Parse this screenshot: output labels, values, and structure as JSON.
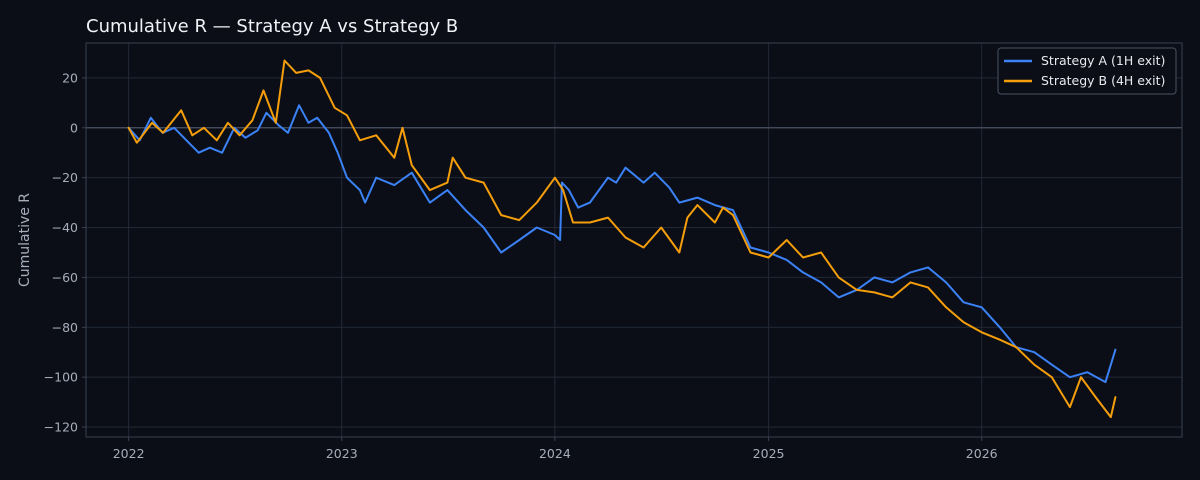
{
  "chart_data": {
    "type": "line",
    "title": "Cumulative R — Strategy A vs Strategy B",
    "xlabel": "",
    "ylabel": "Cumulative R",
    "xlim": [
      "2021-10-20",
      "2026-12-10"
    ],
    "ylim": [
      -124,
      34
    ],
    "x_ticks": [
      "2022",
      "2023",
      "2024",
      "2025",
      "2026"
    ],
    "y_ticks": [
      20,
      0,
      -20,
      -40,
      -60,
      -80,
      -100,
      -120
    ],
    "y_tick_labels": [
      "20",
      "0",
      "−20",
      "−40",
      "−60",
      "−80",
      "−100",
      "−120"
    ],
    "grid": true,
    "zero_line": true,
    "legend": "top-right",
    "colors": {
      "background": "#0b0e17",
      "grid": "#222836",
      "axis": "#3a4050",
      "zero_line": "#4a5262",
      "text": "#e8eaf0",
      "tick_text": "#a7adba",
      "series_a": "#3b82f6",
      "series_b": "#f59e0b"
    },
    "series": [
      {
        "name": "Strategy A (1H exit)",
        "color": "#3b82f6",
        "points": [
          [
            "2022-01-01",
            0
          ],
          [
            "2022-01-20",
            -5
          ],
          [
            "2022-02-08",
            4
          ],
          [
            "2022-02-28",
            -2
          ],
          [
            "2022-03-20",
            0
          ],
          [
            "2022-04-10",
            -5
          ],
          [
            "2022-05-01",
            -10
          ],
          [
            "2022-05-20",
            -8
          ],
          [
            "2022-06-10",
            -10
          ],
          [
            "2022-07-01",
            0
          ],
          [
            "2022-07-20",
            -4
          ],
          [
            "2022-08-10",
            -1
          ],
          [
            "2022-08-25",
            6
          ],
          [
            "2022-09-15",
            1
          ],
          [
            "2022-10-01",
            -2
          ],
          [
            "2022-10-20",
            9
          ],
          [
            "2022-11-05",
            2
          ],
          [
            "2022-11-20",
            4
          ],
          [
            "2022-12-10",
            -2
          ],
          [
            "2022-12-25",
            -10
          ],
          [
            "2023-01-10",
            -20
          ],
          [
            "2023-02-01",
            -25
          ],
          [
            "2023-02-10",
            -30
          ],
          [
            "2023-03-01",
            -20
          ],
          [
            "2023-04-01",
            -23
          ],
          [
            "2023-05-01",
            -18
          ],
          [
            "2023-06-01",
            -30
          ],
          [
            "2023-07-01",
            -25
          ],
          [
            "2023-08-01",
            -33
          ],
          [
            "2023-09-01",
            -40
          ],
          [
            "2023-10-01",
            -50
          ],
          [
            "2023-11-01",
            -45
          ],
          [
            "2023-12-01",
            -40
          ],
          [
            "2024-01-01",
            -43
          ],
          [
            "2024-01-10",
            -45
          ],
          [
            "2024-01-13",
            -22
          ],
          [
            "2024-01-25",
            -25
          ],
          [
            "2024-02-10",
            -32
          ],
          [
            "2024-03-01",
            -30
          ],
          [
            "2024-04-01",
            -20
          ],
          [
            "2024-04-15",
            -22
          ],
          [
            "2024-05-01",
            -16
          ],
          [
            "2024-06-01",
            -22
          ],
          [
            "2024-06-20",
            -18
          ],
          [
            "2024-07-15",
            -24
          ],
          [
            "2024-08-01",
            -30
          ],
          [
            "2024-09-01",
            -28
          ],
          [
            "2024-10-01",
            -31
          ],
          [
            "2024-11-01",
            -33
          ],
          [
            "2024-12-01",
            -48
          ],
          [
            "2025-01-01",
            -50
          ],
          [
            "2025-02-01",
            -53
          ],
          [
            "2025-03-01",
            -58
          ],
          [
            "2025-04-01",
            -62
          ],
          [
            "2025-05-01",
            -68
          ],
          [
            "2025-06-01",
            -65
          ],
          [
            "2025-07-01",
            -60
          ],
          [
            "2025-08-01",
            -62
          ],
          [
            "2025-09-01",
            -58
          ],
          [
            "2025-10-01",
            -56
          ],
          [
            "2025-11-01",
            -62
          ],
          [
            "2025-12-01",
            -70
          ],
          [
            "2026-01-01",
            -72
          ],
          [
            "2026-02-01",
            -80
          ],
          [
            "2026-03-01",
            -88
          ],
          [
            "2026-04-01",
            -90
          ],
          [
            "2026-05-01",
            -95
          ],
          [
            "2026-06-01",
            -100
          ],
          [
            "2026-07-01",
            -98
          ],
          [
            "2026-08-01",
            -102
          ],
          [
            "2026-08-18",
            -89
          ]
        ]
      },
      {
        "name": "Strategy B (4H exit)",
        "color": "#f59e0b",
        "points": [
          [
            "2022-01-01",
            0
          ],
          [
            "2022-01-15",
            -6
          ],
          [
            "2022-01-25",
            -3
          ],
          [
            "2022-02-10",
            2
          ],
          [
            "2022-03-01",
            -2
          ],
          [
            "2022-04-01",
            7
          ],
          [
            "2022-04-20",
            -3
          ],
          [
            "2022-05-10",
            0
          ],
          [
            "2022-06-01",
            -5
          ],
          [
            "2022-06-20",
            2
          ],
          [
            "2022-07-10",
            -3
          ],
          [
            "2022-08-01",
            3
          ],
          [
            "2022-08-20",
            15
          ],
          [
            "2022-09-10",
            2
          ],
          [
            "2022-09-25",
            27
          ],
          [
            "2022-10-15",
            22
          ],
          [
            "2022-11-05",
            23
          ],
          [
            "2022-11-25",
            20
          ],
          [
            "2022-12-20",
            8
          ],
          [
            "2023-01-10",
            5
          ],
          [
            "2023-02-01",
            -5
          ],
          [
            "2023-03-01",
            -3
          ],
          [
            "2023-04-01",
            -12
          ],
          [
            "2023-04-15",
            0
          ],
          [
            "2023-05-01",
            -15
          ],
          [
            "2023-06-01",
            -25
          ],
          [
            "2023-07-01",
            -22
          ],
          [
            "2023-07-10",
            -12
          ],
          [
            "2023-08-01",
            -20
          ],
          [
            "2023-09-01",
            -22
          ],
          [
            "2023-10-01",
            -35
          ],
          [
            "2023-11-01",
            -37
          ],
          [
            "2023-12-01",
            -30
          ],
          [
            "2024-01-01",
            -20
          ],
          [
            "2024-01-15",
            -25
          ],
          [
            "2024-02-01",
            -38
          ],
          [
            "2024-03-01",
            -38
          ],
          [
            "2024-04-01",
            -36
          ],
          [
            "2024-05-01",
            -44
          ],
          [
            "2024-06-01",
            -48
          ],
          [
            "2024-07-01",
            -40
          ],
          [
            "2024-08-01",
            -50
          ],
          [
            "2024-08-15",
            -36
          ],
          [
            "2024-09-01",
            -31
          ],
          [
            "2024-10-01",
            -38
          ],
          [
            "2024-10-15",
            -32
          ],
          [
            "2024-11-01",
            -35
          ],
          [
            "2024-12-01",
            -50
          ],
          [
            "2025-01-01",
            -52
          ],
          [
            "2025-02-01",
            -45
          ],
          [
            "2025-03-01",
            -52
          ],
          [
            "2025-04-01",
            -50
          ],
          [
            "2025-05-01",
            -60
          ],
          [
            "2025-06-01",
            -65
          ],
          [
            "2025-07-01",
            -66
          ],
          [
            "2025-08-01",
            -68
          ],
          [
            "2025-09-01",
            -62
          ],
          [
            "2025-10-01",
            -64
          ],
          [
            "2025-11-01",
            -72
          ],
          [
            "2025-12-01",
            -78
          ],
          [
            "2026-01-01",
            -82
          ],
          [
            "2026-02-01",
            -85
          ],
          [
            "2026-03-01",
            -88
          ],
          [
            "2026-04-01",
            -95
          ],
          [
            "2026-05-01",
            -100
          ],
          [
            "2026-06-01",
            -112
          ],
          [
            "2026-06-20",
            -100
          ],
          [
            "2026-07-15",
            -108
          ],
          [
            "2026-08-10",
            -116
          ],
          [
            "2026-08-18",
            -108
          ]
        ]
      }
    ]
  }
}
